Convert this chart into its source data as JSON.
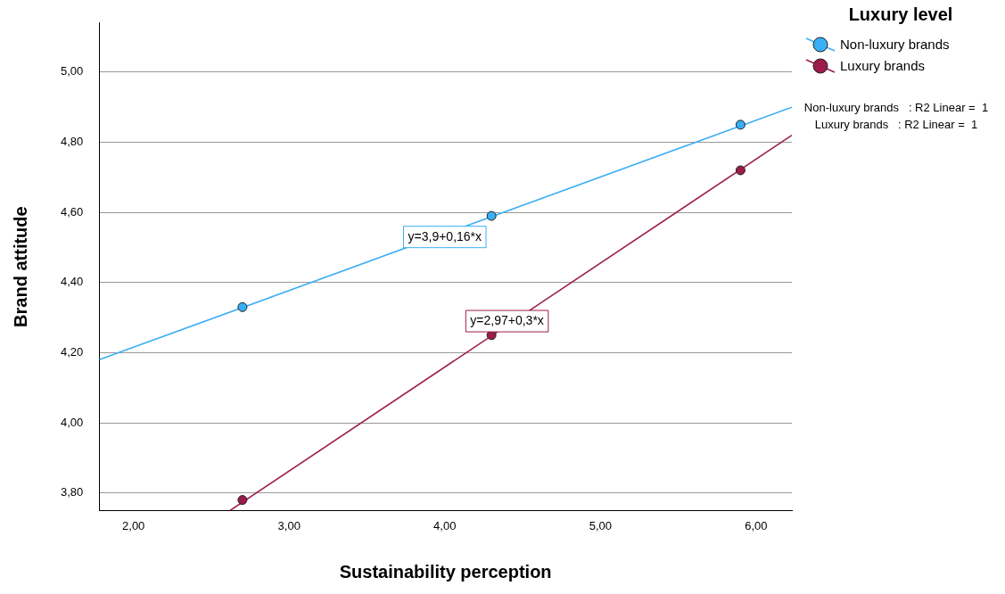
{
  "chart_data": {
    "type": "scatter",
    "xlabel": "Sustainability perception",
    "ylabel": "Brand attitude",
    "legend_title": "Luxury level",
    "legend": "top right",
    "grid": "y",
    "marker": "circle",
    "xlim": [
      1.78,
      6.23
    ],
    "ylim": [
      3.75,
      5.14
    ],
    "xticks": [
      {
        "value": 2,
        "label": "2,00"
      },
      {
        "value": 3,
        "label": "3,00"
      },
      {
        "value": 4,
        "label": "4,00"
      },
      {
        "value": 5,
        "label": "5,00"
      },
      {
        "value": 6,
        "label": "6,00"
      }
    ],
    "yticks": [
      {
        "value": 3.8,
        "label": "3,80"
      },
      {
        "value": 4,
        "label": "4,00"
      },
      {
        "value": 4.2,
        "label": "4,20"
      },
      {
        "value": 4.4,
        "label": "4,40"
      },
      {
        "value": 4.6,
        "label": "4,60"
      },
      {
        "value": 4.8,
        "label": "4,80"
      },
      {
        "value": 5,
        "label": "5,00"
      }
    ],
    "series": [
      {
        "name": "Non-luxury brands",
        "color": "#3aaef5",
        "x": [
          2.7,
          4.3,
          5.9
        ],
        "values": [
          4.33,
          4.59,
          4.85
        ]
      },
      {
        "name": "Luxury brands",
        "color": "#9b1b4b",
        "x": [
          2.7,
          4.3,
          5.9
        ],
        "values": [
          3.78,
          4.25,
          4.72
        ]
      },
      {
        "type": "line",
        "marker": "none",
        "color": "#3aaef5",
        "x": [
          1.78,
          6.23
        ],
        "values": [
          4.18,
          4.9
        ]
      },
      {
        "type": "line",
        "marker": "none",
        "color": "#9b1b4b",
        "x": [
          2.62,
          6.23
        ],
        "values": [
          3.75,
          4.82
        ]
      }
    ],
    "annotations": [
      {
        "text": "y=3,9+0,16*x",
        "x": 4,
        "y": 4.53
      },
      {
        "text": "y=2,97+0,3*x",
        "x": 4.4,
        "y": 4.29
      },
      "Non-luxury brands   : R2 Linear =  1",
      "Luxury brands   : R2 Linear =  1"
    ]
  }
}
